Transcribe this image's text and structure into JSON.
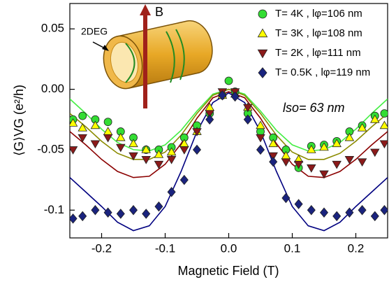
{
  "chart_data": {
    "type": "scatter",
    "x_label": "Magnetic Field (T)",
    "y_label": "⟨G⟩VG (e²/h)",
    "annotation": "lso= 63 nm",
    "inset_labels": [
      "B",
      "2DEG"
    ],
    "xlim": [
      -0.25,
      0.25
    ],
    "ylim": [
      -0.123,
      0.071
    ],
    "xticks": [
      -0.2,
      -0.1,
      {
        "value": 0,
        "label": "0.0"
      },
      0.1,
      0.2
    ],
    "yticks": [
      -0.1,
      -0.05,
      {
        "value": 0,
        "label": "0.00"
      },
      0.05
    ],
    "fit_x": [
      -0.25,
      -0.225,
      -0.2,
      -0.175,
      -0.15,
      -0.125,
      -0.1,
      -0.075,
      -0.05,
      -0.025,
      0,
      0.025,
      0.05,
      0.075,
      0.1,
      0.125,
      0.15,
      0.175,
      0.2,
      0.225,
      0.25
    ],
    "series": [
      {
        "name": "T= 4K ,  lφ=106 nm",
        "marker": "circle",
        "color": "#33dd33",
        "fit_color": "#44ee44",
        "x": [
          -0.245,
          -0.23,
          -0.21,
          -0.19,
          -0.17,
          -0.15,
          -0.13,
          -0.11,
          -0.09,
          -0.07,
          -0.05,
          -0.03,
          -0.01,
          0.0,
          0.01,
          0.03,
          0.05,
          0.07,
          0.09,
          0.11,
          0.13,
          0.15,
          0.17,
          0.19,
          0.21,
          0.23,
          0.245
        ],
        "values": [
          -0.025,
          -0.022,
          -0.025,
          -0.027,
          -0.035,
          -0.04,
          -0.05,
          -0.05,
          -0.048,
          -0.04,
          -0.03,
          -0.02,
          -0.005,
          0.007,
          -0.002,
          -0.02,
          -0.035,
          -0.04,
          -0.05,
          -0.065,
          -0.047,
          -0.046,
          -0.043,
          -0.035,
          -0.03,
          -0.022,
          -0.02
        ],
        "fit": [
          -0.008,
          -0.02,
          -0.033,
          -0.044,
          -0.05,
          -0.051,
          -0.046,
          -0.034,
          -0.018,
          -0.004,
          0,
          -0.004,
          -0.018,
          -0.034,
          -0.046,
          -0.051,
          -0.05,
          -0.044,
          -0.033,
          -0.02,
          -0.008
        ]
      },
      {
        "name": "T= 3K ,  lφ=108 nm",
        "marker": "triangle",
        "color": "#ffff00",
        "fit_color": "#8b8b00",
        "x": [
          -0.245,
          -0.23,
          -0.21,
          -0.19,
          -0.17,
          -0.15,
          -0.13,
          -0.11,
          -0.09,
          -0.07,
          -0.05,
          -0.03,
          -0.01,
          0.01,
          0.03,
          0.05,
          0.07,
          0.09,
          0.11,
          0.13,
          0.15,
          0.17,
          0.19,
          0.21,
          0.23,
          0.245
        ],
        "values": [
          -0.028,
          -0.032,
          -0.03,
          -0.035,
          -0.04,
          -0.045,
          -0.05,
          -0.054,
          -0.052,
          -0.045,
          -0.035,
          -0.015,
          -0.005,
          -0.004,
          -0.015,
          -0.03,
          -0.045,
          -0.055,
          -0.058,
          -0.05,
          -0.048,
          -0.045,
          -0.04,
          -0.032,
          -0.025,
          -0.03
        ],
        "fit": [
          -0.02,
          -0.031,
          -0.043,
          -0.053,
          -0.058,
          -0.058,
          -0.052,
          -0.038,
          -0.02,
          -0.005,
          0,
          -0.005,
          -0.02,
          -0.038,
          -0.052,
          -0.058,
          -0.058,
          -0.053,
          -0.043,
          -0.031,
          -0.02
        ]
      },
      {
        "name": "T= 2K ,  lφ=111 nm",
        "marker": "triangle-down",
        "color": "#8b1a1a",
        "fit_color": "#8b0000",
        "x": [
          -0.245,
          -0.23,
          -0.21,
          -0.19,
          -0.17,
          -0.15,
          -0.13,
          -0.11,
          -0.09,
          -0.07,
          -0.05,
          -0.03,
          -0.01,
          0.01,
          0.03,
          0.05,
          0.07,
          0.09,
          0.11,
          0.13,
          0.15,
          0.17,
          0.19,
          0.21,
          0.23,
          0.245
        ],
        "values": [
          -0.05,
          -0.04,
          -0.045,
          -0.04,
          -0.048,
          -0.055,
          -0.058,
          -0.062,
          -0.058,
          -0.05,
          -0.035,
          -0.02,
          -0.002,
          -0.002,
          -0.015,
          -0.04,
          -0.055,
          -0.06,
          -0.062,
          -0.065,
          -0.07,
          -0.062,
          -0.058,
          -0.06,
          -0.052,
          -0.045
        ],
        "fit": [
          -0.035,
          -0.046,
          -0.058,
          -0.068,
          -0.073,
          -0.072,
          -0.062,
          -0.045,
          -0.024,
          -0.007,
          -0.002,
          -0.007,
          -0.024,
          -0.045,
          -0.062,
          -0.072,
          -0.073,
          -0.068,
          -0.058,
          -0.046,
          -0.035
        ]
      },
      {
        "name": "T= 0.5K ,  lφ=119 nm",
        "marker": "diamond",
        "color": "#1a237e",
        "fit_color": "#000080",
        "x": [
          -0.245,
          -0.23,
          -0.21,
          -0.19,
          -0.17,
          -0.15,
          -0.13,
          -0.11,
          -0.09,
          -0.07,
          -0.05,
          -0.03,
          -0.01,
          0.01,
          0.03,
          0.05,
          0.07,
          0.09,
          0.11,
          0.13,
          0.15,
          0.17,
          0.19,
          0.21,
          0.23,
          0.245
        ],
        "values": [
          -0.107,
          -0.105,
          -0.1,
          -0.102,
          -0.103,
          -0.1,
          -0.103,
          -0.097,
          -0.085,
          -0.075,
          -0.05,
          -0.025,
          -0.005,
          -0.006,
          -0.025,
          -0.05,
          -0.06,
          -0.09,
          -0.095,
          -0.1,
          -0.102,
          -0.105,
          -0.102,
          -0.1,
          -0.105,
          -0.1
        ],
        "fit": [
          -0.073,
          -0.085,
          -0.097,
          -0.11,
          -0.117,
          -0.113,
          -0.097,
          -0.068,
          -0.035,
          -0.011,
          -0.003,
          -0.011,
          -0.035,
          -0.068,
          -0.097,
          -0.113,
          -0.117,
          -0.11,
          -0.097,
          -0.085,
          -0.073
        ]
      }
    ]
  }
}
